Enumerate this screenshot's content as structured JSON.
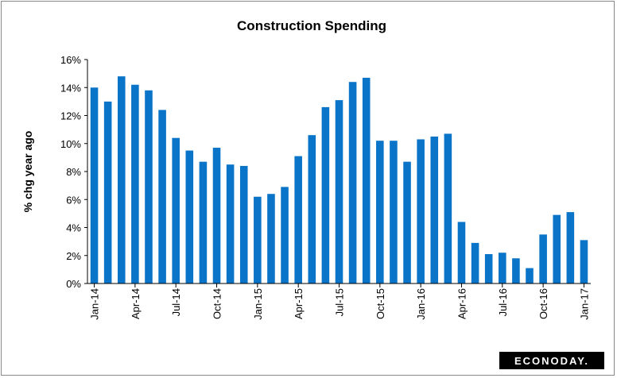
{
  "chart_data": {
    "type": "bar",
    "title": "Construction  Spending",
    "y_label": "% chg year ago",
    "logo": "ECONODAY.",
    "categories": [
      "Jan-14",
      null,
      null,
      "Apr-14",
      null,
      null,
      "Jul-14",
      null,
      null,
      "Oct-14",
      null,
      null,
      "Jan-15",
      null,
      null,
      "Apr-15",
      null,
      null,
      "Jul-15",
      null,
      null,
      "Oct-15",
      null,
      null,
      "Jan-16",
      null,
      null,
      "Apr-16",
      null,
      null,
      "Jul-16",
      null,
      null,
      "Oct-16",
      null,
      null,
      "Jan-17"
    ],
    "values": [
      14.0,
      13.0,
      14.8,
      14.2,
      13.8,
      12.4,
      10.4,
      9.5,
      8.7,
      9.7,
      8.5,
      8.4,
      6.2,
      6.4,
      6.9,
      9.1,
      10.6,
      12.6,
      13.1,
      14.4,
      14.7,
      10.2,
      10.2,
      8.7,
      10.3,
      10.5,
      10.7,
      4.4,
      2.9,
      2.1,
      2.2,
      1.8,
      1.1,
      3.5,
      4.9,
      5.1,
      3.1
    ],
    "color": "#0a74c8",
    "ylim": [
      0,
      16
    ],
    "yticks": [
      {
        "value": 0,
        "label": "0%"
      },
      {
        "value": 2,
        "label": "2%"
      },
      {
        "value": 4,
        "label": "4%"
      },
      {
        "value": 6,
        "label": "6%"
      },
      {
        "value": 8,
        "label": "8%"
      },
      {
        "value": 10,
        "label": "10%"
      },
      {
        "value": 12,
        "label": "12%"
      },
      {
        "value": 14,
        "label": "14%"
      },
      {
        "value": 16,
        "label": "16%"
      }
    ]
  }
}
